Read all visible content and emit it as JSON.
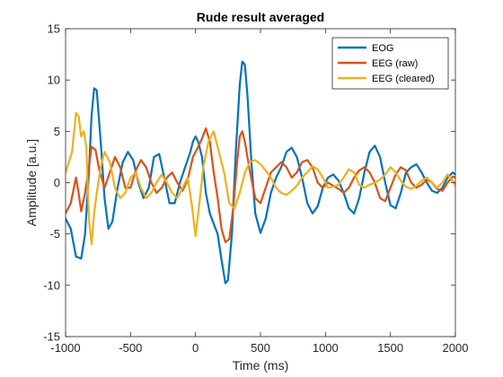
{
  "chart_data": {
    "type": "line",
    "title": "Rude result averaged",
    "xlabel": "Time (ms)",
    "ylabel": "Amplitude [a.u.]",
    "xlim": [
      -1000,
      2000
    ],
    "ylim": [
      -15,
      15
    ],
    "xticks": [
      -1000,
      -500,
      0,
      500,
      1000,
      1500,
      2000
    ],
    "yticks": [
      -15,
      -10,
      -5,
      0,
      5,
      10,
      15
    ],
    "grid": false,
    "legend_position": "top-right",
    "series": [
      {
        "name": "EOG",
        "color": "#0072BD",
        "x": [
          -1000,
          -960,
          -920,
          -880,
          -850,
          -820,
          -800,
          -780,
          -760,
          -730,
          -700,
          -670,
          -640,
          -600,
          -560,
          -520,
          -480,
          -440,
          -400,
          -360,
          -320,
          -280,
          -240,
          -200,
          -160,
          -120,
          -80,
          -40,
          -20,
          0,
          20,
          50,
          80,
          110,
          140,
          170,
          200,
          230,
          250,
          280,
          310,
          340,
          360,
          380,
          400,
          430,
          460,
          500,
          540,
          580,
          620,
          660,
          700,
          740,
          780,
          820,
          860,
          900,
          940,
          980,
          1020,
          1060,
          1100,
          1140,
          1180,
          1220,
          1260,
          1300,
          1340,
          1380,
          1420,
          1460,
          1500,
          1540,
          1580,
          1620,
          1660,
          1700,
          1740,
          1780,
          1820,
          1860,
          1900,
          1940,
          1980,
          2000
        ],
        "values": [
          -3.5,
          -4.5,
          -7.2,
          -7.4,
          -5.0,
          1.0,
          6.5,
          9.2,
          9.0,
          4.0,
          -1.5,
          -4.5,
          -3.8,
          -0.5,
          2.0,
          3.0,
          2.2,
          0.0,
          -1.5,
          -0.5,
          2.5,
          2.8,
          0.5,
          -2.0,
          -2.0,
          0.0,
          1.5,
          3.0,
          4.0,
          4.5,
          4.0,
          2.5,
          -1.0,
          -3.0,
          -4.0,
          -5.0,
          -7.5,
          -9.8,
          -9.5,
          -5.0,
          3.0,
          9.5,
          11.8,
          11.5,
          8.5,
          2.0,
          -3.0,
          -4.9,
          -3.5,
          -1.0,
          0.5,
          1.5,
          3.0,
          3.4,
          2.5,
          0.5,
          -2.0,
          -3.0,
          -2.3,
          -0.5,
          0.5,
          0.8,
          0.2,
          -1.0,
          -2.5,
          -3.0,
          -1.5,
          1.0,
          3.0,
          3.6,
          2.5,
          0.0,
          -2.2,
          -2.5,
          -1.0,
          1.0,
          1.5,
          1.8,
          1.0,
          0.0,
          -0.8,
          -1.0,
          -0.5,
          0.5,
          1.0,
          0.8
        ]
      },
      {
        "name": "EEG (raw)",
        "color": "#D95319",
        "x": [
          -1000,
          -960,
          -920,
          -900,
          -880,
          -850,
          -820,
          -800,
          -770,
          -740,
          -700,
          -660,
          -620,
          -580,
          -540,
          -500,
          -460,
          -420,
          -380,
          -340,
          -300,
          -260,
          -220,
          -180,
          -140,
          -100,
          -60,
          -20,
          0,
          40,
          80,
          110,
          140,
          170,
          200,
          230,
          260,
          290,
          320,
          340,
          360,
          380,
          420,
          460,
          500,
          540,
          580,
          620,
          660,
          700,
          740,
          780,
          820,
          860,
          900,
          940,
          980,
          1020,
          1060,
          1100,
          1140,
          1180,
          1220,
          1260,
          1300,
          1340,
          1380,
          1420,
          1460,
          1500,
          1540,
          1580,
          1620,
          1660,
          1700,
          1740,
          1780,
          1820,
          1860,
          1900,
          1940,
          1980,
          2000
        ],
        "values": [
          -3.0,
          -2.0,
          0.5,
          -1.0,
          -2.8,
          -1.0,
          1.5,
          3.5,
          3.2,
          1.2,
          -0.5,
          1.0,
          2.5,
          1.5,
          -0.5,
          -0.5,
          1.2,
          2.2,
          1.5,
          0.0,
          -1.0,
          -0.5,
          0.5,
          1.0,
          0.0,
          -0.8,
          0.3,
          2.5,
          3.0,
          4.0,
          5.3,
          4.0,
          1.0,
          -1.5,
          -4.5,
          -5.8,
          -5.5,
          -2.5,
          2.0,
          4.5,
          5.0,
          4.0,
          1.0,
          -1.5,
          -2.0,
          -0.5,
          1.0,
          1.5,
          2.0,
          1.5,
          0.5,
          1.0,
          2.0,
          2.2,
          1.5,
          0.0,
          -0.5,
          0.0,
          -0.3,
          -0.6,
          -1.0,
          -0.5,
          0.5,
          1.2,
          1.5,
          1.0,
          0.0,
          -1.5,
          -1.8,
          -0.5,
          0.8,
          1.5,
          1.2,
          0.0,
          -0.5,
          -0.2,
          0.3,
          0.0,
          -0.6,
          -0.8,
          0.0,
          0.6,
          0.5
        ]
      },
      {
        "name": "EEG (cleared)",
        "color": "#EDB120",
        "x": [
          -1000,
          -980,
          -950,
          -920,
          -900,
          -880,
          -860,
          -840,
          -820,
          -800,
          -780,
          -760,
          -730,
          -700,
          -660,
          -620,
          -580,
          -540,
          -500,
          -460,
          -420,
          -380,
          -340,
          -300,
          -260,
          -220,
          -180,
          -140,
          -100,
          -60,
          -30,
          0,
          30,
          60,
          100,
          140,
          180,
          220,
          260,
          300,
          340,
          380,
          420,
          460,
          500,
          540,
          580,
          620,
          660,
          700,
          740,
          780,
          820,
          860,
          900,
          940,
          980,
          1020,
          1060,
          1100,
          1140,
          1180,
          1220,
          1260,
          1300,
          1340,
          1380,
          1420,
          1460,
          1500,
          1540,
          1580,
          1620,
          1660,
          1700,
          1740,
          1780,
          1820,
          1860,
          1900,
          1940,
          1980,
          2000
        ],
        "values": [
          1.0,
          1.8,
          3.0,
          6.8,
          6.5,
          4.5,
          5.0,
          3.5,
          -3.5,
          -6.0,
          -3.0,
          -1.0,
          1.5,
          3.0,
          2.0,
          -0.5,
          -1.5,
          -1.0,
          0.5,
          1.0,
          -0.5,
          -1.5,
          -1.0,
          0.0,
          0.8,
          0.0,
          -1.0,
          -1.5,
          -0.5,
          0.5,
          -2.0,
          -5.2,
          -2.0,
          1.5,
          4.0,
          5.0,
          3.0,
          1.0,
          -2.0,
          -2.5,
          -1.0,
          1.0,
          2.0,
          2.2,
          1.8,
          1.2,
          0.5,
          -0.5,
          -1.0,
          -1.2,
          -0.8,
          -0.3,
          0.5,
          1.0,
          1.6,
          1.3,
          0.5,
          -0.5,
          -0.4,
          -0.2,
          0.5,
          1.3,
          1.0,
          -0.2,
          -0.5,
          -0.2,
          0.0,
          0.3,
          0.8,
          1.5,
          1.0,
          0.2,
          -0.4,
          -0.6,
          -0.3,
          0.2,
          0.5,
          0.0,
          -0.5,
          0.0,
          0.8,
          0.2,
          -0.3
        ]
      }
    ]
  }
}
